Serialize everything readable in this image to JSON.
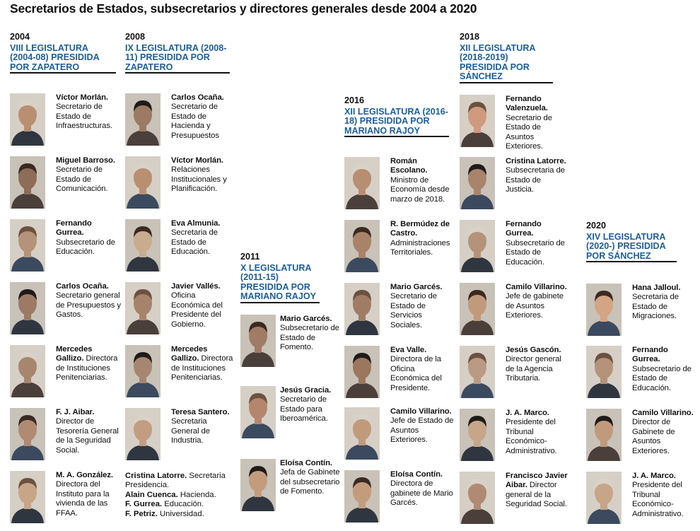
{
  "title": "Secretarios de Estados, subsecretarios y directores generales desde 2004 a 2020",
  "columns": [
    {
      "year": "2004",
      "legislature": "VIII LEGISLATURA (2004-08) PRESIDIDA POR ZAPATERO",
      "people": [
        {
          "name": "Víctor Morlán.",
          "role": "Secretario de Estado de Infraestructuras.",
          "photo_tone": "#b98f72"
        },
        {
          "name": "Miguel Barroso.",
          "role": "Secretario de Estado de Comunicación.",
          "photo_tone": "#8d6c58"
        },
        {
          "name": "Fernando Gurrea.",
          "role": "Subsecretario de Educación.",
          "photo_tone": "#b5927a"
        },
        {
          "name": "Carlos Ocaña.",
          "role": "Secretario general de Presupuestos y Gastos.",
          "photo_tone": "#9c7a63"
        },
        {
          "name": "Mercedes Gallizo.",
          "role": "Directora de Instituciones Penitenciarias.",
          "photo_tone": "#a7866f"
        },
        {
          "name": "F. J. Aibar.",
          "role": "Director de Tesorería General de la Seguridad Social.",
          "photo_tone": "#b08a72"
        },
        {
          "name": "M. A. González.",
          "role": "Directora del Instituto para la vivienda de las FFAA.",
          "photo_tone": "#c7a587"
        }
      ]
    },
    {
      "year": "2008",
      "legislature": "IX LEGISLATURA (2008-11) PRESIDIDA POR ZAPATERO",
      "people": [
        {
          "name": "Carlos Ocaña.",
          "role": "Secretario de Estado de Hacienda y Presupuestos",
          "photo_tone": "#9c7a63"
        },
        {
          "name": "Víctor Morlán.",
          "role": "Relaciones Institucionales y Planificación.",
          "photo_tone": "#b98f72"
        },
        {
          "name": "Eva Almunia.",
          "role": "Secretaria de Estado de Educación.",
          "photo_tone": "#c9ab8e"
        },
        {
          "name": "Javier Vallés.",
          "role": "Oficina Económica del Presidente del Gobierno.",
          "photo_tone": "#a7836b"
        },
        {
          "name": "Mercedes Gallizo.",
          "role": "Directora de Instituciones Penitenciarias.",
          "photo_tone": "#a7866f"
        },
        {
          "name": "Teresa Santero.",
          "role": "Secretaria General de Industria.",
          "photo_tone": "#c29d82"
        }
      ],
      "extra_lines": [
        {
          "name": "Cristina Latorre.",
          "role": "Secretaria Presidencia."
        },
        {
          "name": "Alain Cuenca.",
          "role": "Hacienda."
        },
        {
          "name": "F. Gurrea.",
          "role": "Educación."
        },
        {
          "name": "F. Petriz.",
          "role": "Universidad."
        }
      ]
    },
    {
      "year": "2011",
      "legislature": "X LEGISLATURA (2011-15) PRESIDIDA POR MARIANO RAJOY",
      "people": [
        {
          "name": "Mario Garcés.",
          "role": "Subsecretario de Estado de Fomento.",
          "photo_tone": "#a07c64"
        },
        {
          "name": "Jesús Gracia.",
          "role": "Secretario de Estado para Iberoamérica.",
          "photo_tone": "#b4866e"
        },
        {
          "name": "Eloísa Contín.",
          "role": "Jefa de Gabinete del subsecretario de Fomento.",
          "photo_tone": "#c39c7e"
        }
      ]
    },
    {
      "year": "2016",
      "legislature": "XII LEGISLATURA (2016-18) PRESIDIDA POR MARIANO RAJOY",
      "people": [
        {
          "name": "Román Escolano.",
          "role": "Ministro de Economía desde marzo de 2018.",
          "photo_tone": "#b88e72"
        },
        {
          "name": "R. Bermúdez de Castro.",
          "role": "Administraciones Territoriales.",
          "photo_tone": "#a98369"
        },
        {
          "name": "Mario Garcés.",
          "role": "Secretario de Estado de Servicios Sociales.",
          "photo_tone": "#a07c64"
        },
        {
          "name": "Eva Valle.",
          "role": "Directora de la Oficina Económica del Presidente.",
          "photo_tone": "#9b775e"
        },
        {
          "name": "Camilo Villarino.",
          "role": "Jefe de Estado de Asuntos Exteriores.",
          "photo_tone": "#c19a7c"
        },
        {
          "name": "Eloísa Contín.",
          "role": "Directora de gabinete de Mario Garcés.",
          "photo_tone": "#c39c7e"
        }
      ]
    },
    {
      "year": "2018",
      "legislature": "XII LEGISLATURA (2018-2019) PRESIDIDA POR SÁNCHEZ",
      "people": [
        {
          "name": "Fernando Valenzuela.",
          "role": "Secretario de Estado de Asuntos Exteriores.",
          "photo_tone": "#cf9a7e"
        },
        {
          "name": "Cristina Latorre.",
          "role": "Subsecretaria de Estado de Justicia.",
          "photo_tone": "#a9846b"
        },
        {
          "name": "Fernando Gurrea.",
          "role": "Subsecretario de Estado de Educación.",
          "photo_tone": "#b5927a"
        },
        {
          "name": "Camilo Villarino.",
          "role": "Jefe de gabinete de Asuntos Exteriores.",
          "photo_tone": "#c19a7c"
        },
        {
          "name": "Jesús Gascón.",
          "role": "Director general de la Agencia Tributaria.",
          "photo_tone": "#bb9a84"
        },
        {
          "name": "J. A. Marco.",
          "role": "Presidente del Tribunal Económico-Administrativo.",
          "photo_tone": "#c7a588"
        },
        {
          "name": "Francisco Javier Aibar.",
          "role": "Director general de la Seguridad Social.",
          "photo_tone": "#b08a72"
        }
      ]
    },
    {
      "year": "2020",
      "legislature": "XIV LEGISLATURA (2020-) PRESIDIDA POR SÁNCHEZ",
      "people": [
        {
          "name": "Hana Jalloul.",
          "role": "Secretaria de Estado de Migraciones.",
          "photo_tone": "#d3a585"
        },
        {
          "name": "Fernando Gurrea.",
          "role": "Subsecretario de Estado de Educación.",
          "photo_tone": "#b5927a"
        },
        {
          "name": "Camilo Villarino.",
          "role": "Director de Gabinete de Asuntos Exteriores.",
          "photo_tone": "#c19a7c"
        },
        {
          "name": "J. A. Marco.",
          "role": "Presidente del Tribunal Económico-Administrativo.",
          "photo_tone": "#c7a588"
        }
      ]
    }
  ]
}
